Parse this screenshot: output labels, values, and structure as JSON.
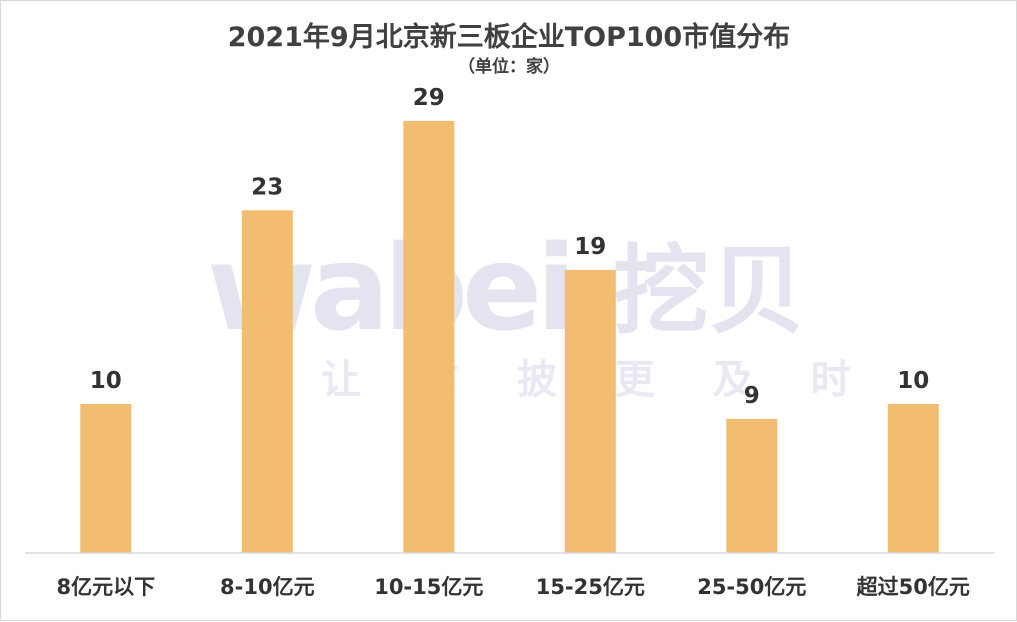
{
  "chart_data": {
    "type": "bar",
    "title": "2021年9月北京新三板企业TOP100市值分布",
    "subtitle": "（单位：家）",
    "categories": [
      "8亿元以下",
      "8-10亿元",
      "10-15亿元",
      "15-25亿元",
      "25-50亿元",
      "超过50亿元"
    ],
    "values": [
      10,
      23,
      29,
      19,
      9,
      10
    ],
    "ylim": [
      0,
      35
    ],
    "grid": false,
    "legend": "none",
    "colors": {
      "bar": "#F2BD71",
      "axis": "#d9d9d9",
      "text": "#333333"
    }
  },
  "watermark": {
    "brand": "wabei",
    "brand_cn": "挖贝",
    "slogan": "让 信 披 更 及 时"
  }
}
